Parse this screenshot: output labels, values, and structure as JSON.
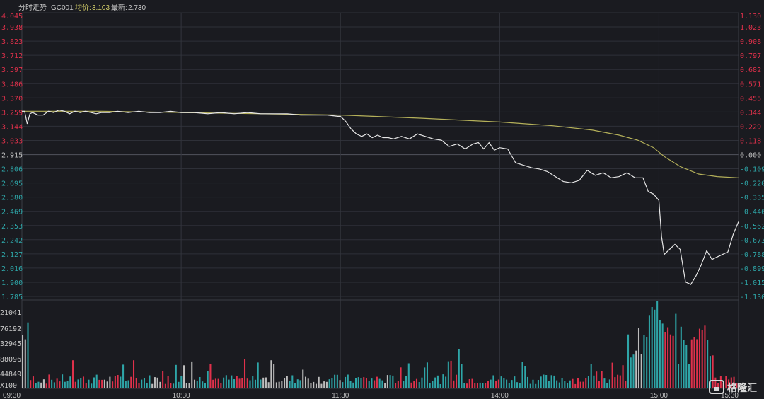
{
  "header": {
    "title": "分时走势",
    "code": "GC001",
    "avg_label": "均价:",
    "avg_value": "3.103",
    "last_label": "最新:",
    "last_value": "2.730"
  },
  "watermark": {
    "text": "格隆汇"
  },
  "colors": {
    "background": "#1a1b20",
    "grid": "#2e3038",
    "price_line": "#e6e6e6",
    "avg_line": "#b5b15a",
    "up": "#e0314b",
    "down": "#2ea6a8",
    "neutral": "#c8c8c8"
  },
  "chart_data": {
    "type": "line",
    "title": "分时走势",
    "prev_close": 2.915,
    "ylim": [
      1.785,
      4.045
    ],
    "price_ticks": [
      "4.045",
      "3.938",
      "3.823",
      "3.712",
      "3.597",
      "3.486",
      "3.370",
      "3.259",
      "3.144",
      "3.033",
      "2.915",
      "2.806",
      "2.695",
      "2.580",
      "2.469",
      "2.353",
      "2.242",
      "2.127",
      "2.016",
      "1.900",
      "1.785"
    ],
    "change_ticks": [
      "1.130",
      "1.023",
      "0.908",
      "0.797",
      "0.682",
      "0.571",
      "0.455",
      "0.344",
      "0.229",
      "0.118",
      "0.000",
      "-0.109",
      "-0.220",
      "-0.335",
      "-0.446",
      "-0.562",
      "-0.673",
      "-0.788",
      "-0.899",
      "-1.015",
      "-1.130"
    ],
    "x_ticks": [
      "09:30",
      "10:30",
      "11:30",
      "14:00",
      "15:00",
      "15:30"
    ],
    "x_tick_minutes": [
      0,
      60,
      120,
      180,
      240,
      270
    ],
    "volume_ticks": [
      "21041",
      "76192",
      "32945",
      "88096",
      "44849",
      "X100"
    ],
    "series": [
      {
        "key": "price",
        "minutes": [
          0,
          1,
          2,
          3,
          4,
          5,
          6,
          8,
          10,
          12,
          14,
          16,
          18,
          20,
          22,
          24,
          26,
          28,
          30,
          33,
          36,
          40,
          44,
          48,
          52,
          56,
          60,
          65,
          70,
          75,
          80,
          85,
          90,
          95,
          100,
          105,
          110,
          115,
          119,
          120,
          122,
          124,
          126,
          128,
          130,
          132,
          134,
          136,
          138,
          140,
          143,
          146,
          149,
          152,
          155,
          158,
          161,
          164,
          167,
          170,
          172,
          174,
          176,
          178,
          180,
          183,
          186,
          189,
          192,
          195,
          198,
          201,
          204,
          207,
          210,
          213,
          216,
          219,
          222,
          225,
          228,
          231,
          234,
          236,
          238,
          240,
          241,
          242,
          244,
          246,
          248,
          250,
          252,
          254,
          256,
          258,
          260,
          262,
          264,
          266,
          268,
          270
        ],
        "values": [
          3.26,
          3.26,
          3.16,
          3.24,
          3.25,
          3.24,
          3.23,
          3.23,
          3.26,
          3.25,
          3.27,
          3.26,
          3.24,
          3.26,
          3.25,
          3.26,
          3.25,
          3.24,
          3.25,
          3.25,
          3.26,
          3.25,
          3.26,
          3.25,
          3.25,
          3.26,
          3.25,
          3.25,
          3.24,
          3.25,
          3.24,
          3.25,
          3.24,
          3.24,
          3.24,
          3.23,
          3.23,
          3.23,
          3.22,
          3.22,
          3.18,
          3.12,
          3.08,
          3.06,
          3.08,
          3.05,
          3.07,
          3.05,
          3.05,
          3.04,
          3.06,
          3.04,
          3.08,
          3.06,
          3.04,
          3.03,
          2.98,
          3.0,
          2.96,
          3.0,
          3.01,
          2.96,
          3.01,
          2.95,
          2.97,
          2.96,
          2.85,
          2.83,
          2.81,
          2.8,
          2.78,
          2.74,
          2.7,
          2.69,
          2.71,
          2.79,
          2.75,
          2.77,
          2.73,
          2.74,
          2.77,
          2.73,
          2.73,
          2.62,
          2.6,
          2.55,
          2.26,
          2.12,
          2.16,
          2.2,
          2.16,
          1.9,
          1.88,
          1.95,
          2.04,
          2.15,
          2.08,
          2.1,
          2.12,
          2.14,
          2.28,
          2.38
        ]
      },
      {
        "key": "average",
        "minutes": [
          0,
          30,
          60,
          90,
          120,
          150,
          180,
          200,
          215,
          225,
          232,
          238,
          242,
          248,
          255,
          262,
          270
        ],
        "values": [
          3.26,
          3.26,
          3.25,
          3.24,
          3.23,
          3.205,
          3.175,
          3.145,
          3.11,
          3.07,
          3.03,
          2.97,
          2.9,
          2.82,
          2.76,
          2.74,
          2.73
        ]
      }
    ],
    "volume_bar_count": 271
  }
}
